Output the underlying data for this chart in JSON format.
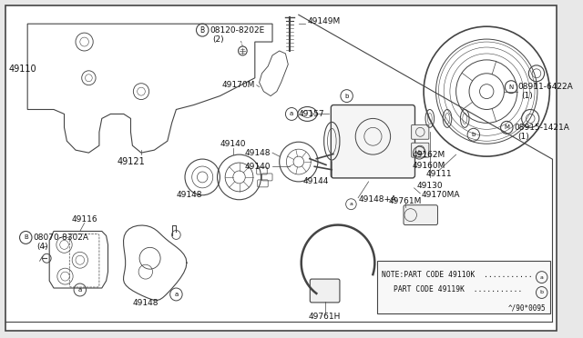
{
  "bg_color": "#e8e8e8",
  "diagram_bg": "#ffffff",
  "line_color": "#444444",
  "text_color": "#111111",
  "note_text1": "NOTE:PART CODE 49110K  ...........",
  "note_text2": "     PART CODE 49119K  ...........",
  "footer": "^/90*0095",
  "figsize": [
    6.4,
    3.72
  ],
  "dpi": 100
}
